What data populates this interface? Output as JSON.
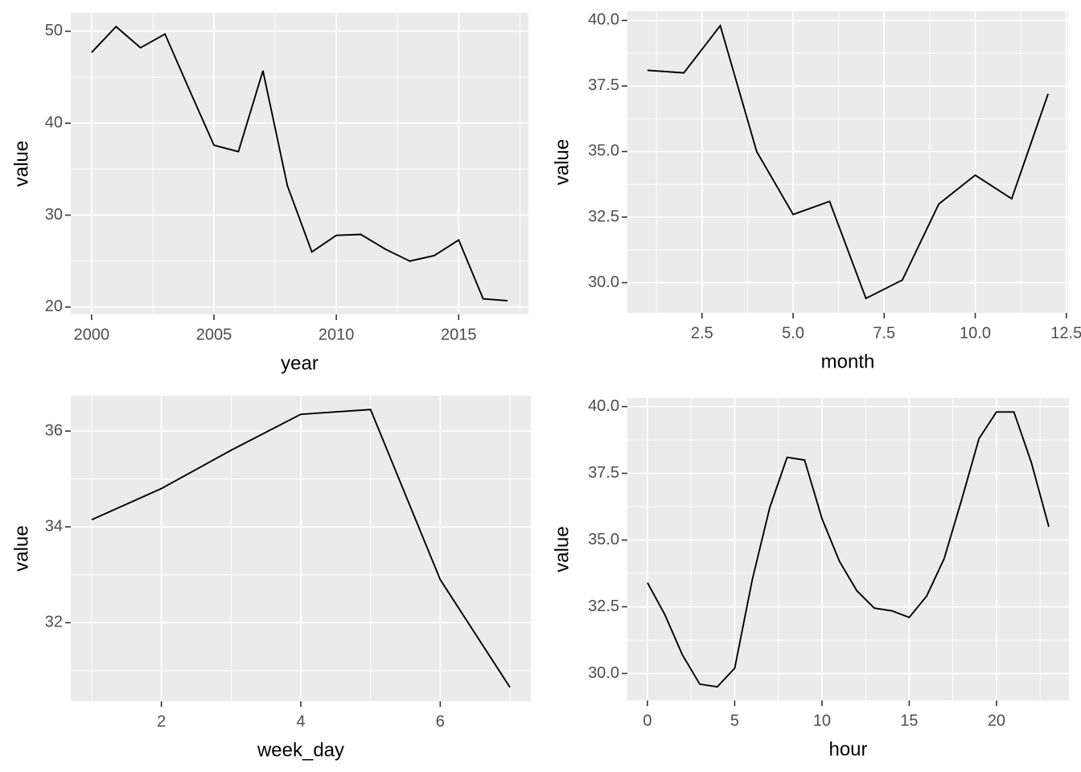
{
  "theme": {
    "panel_bg": "#EBEBEB",
    "grid_color": "#FFFFFF",
    "line_color": "#000000",
    "tick_label_color": "#4D4D4D",
    "tick_mark_color": "#333333",
    "axis_title_color": "#000000"
  },
  "chart_data": [
    {
      "type": "line",
      "id": "year",
      "xlabel": "year",
      "ylabel": "value",
      "x": [
        2000,
        2001,
        2002,
        2003,
        2004,
        2005,
        2006,
        2007,
        2008,
        2009,
        2010,
        2011,
        2012,
        2013,
        2014,
        2015,
        2016,
        2017
      ],
      "values": [
        47.7,
        50.5,
        48.2,
        49.7,
        43.6,
        37.6,
        36.9,
        45.7,
        33.2,
        26.0,
        27.8,
        27.9,
        26.3,
        25.0,
        25.6,
        27.3,
        20.9,
        20.7
      ],
      "x_domain": [
        1999.15,
        2017.85
      ],
      "y_domain": [
        19.2,
        52.0
      ],
      "x_ticks": [
        2000,
        2005,
        2010,
        2015
      ],
      "x_tick_labels": [
        "2000",
        "2005",
        "2010",
        "2015"
      ],
      "y_ticks": [
        20,
        30,
        40,
        50
      ],
      "y_tick_labels": [
        "20",
        "30",
        "40",
        "50"
      ],
      "x_minor": [
        2002.5,
        2007.5,
        2012.5,
        2017.5
      ],
      "y_minor": [
        25,
        35,
        45
      ],
      "grid": true,
      "legend": "none"
    },
    {
      "type": "line",
      "id": "month",
      "xlabel": "month",
      "ylabel": "value",
      "x": [
        1,
        2,
        3,
        4,
        5,
        6,
        7,
        8,
        9,
        10,
        11,
        12
      ],
      "values": [
        38.1,
        38.0,
        39.8,
        35.0,
        32.6,
        33.1,
        29.4,
        30.1,
        33.0,
        34.1,
        33.2,
        37.2
      ],
      "x_domain": [
        0.45,
        12.55
      ],
      "y_domain": [
        28.85,
        40.35
      ],
      "x_ticks": [
        2.5,
        5,
        7.5,
        10,
        12.5
      ],
      "x_tick_labels": [
        "2.5",
        "5.0",
        "7.5",
        "10.0",
        "12.5"
      ],
      "y_ticks": [
        30,
        32.5,
        35,
        37.5,
        40
      ],
      "y_tick_labels": [
        "30.0",
        "32.5",
        "35.0",
        "37.5",
        "40.0"
      ],
      "x_minor": [
        1.25,
        3.75,
        6.25,
        8.75,
        11.25
      ],
      "y_minor": [
        31.25,
        33.75,
        36.25,
        38.75
      ],
      "grid": true,
      "legend": "none"
    },
    {
      "type": "line",
      "id": "week_day",
      "xlabel": "week_day",
      "ylabel": "value",
      "x": [
        1,
        2,
        3,
        4,
        5,
        6,
        7
      ],
      "values": [
        34.15,
        34.8,
        35.6,
        36.35,
        36.45,
        32.9,
        30.65
      ],
      "x_domain": [
        0.7,
        7.3
      ],
      "y_domain": [
        30.36,
        36.74
      ],
      "x_ticks": [
        2,
        4,
        6
      ],
      "x_tick_labels": [
        "2",
        "4",
        "6"
      ],
      "y_ticks": [
        32,
        34,
        36
      ],
      "y_tick_labels": [
        "32",
        "34",
        "36"
      ],
      "x_minor": [
        1,
        3,
        5,
        7
      ],
      "y_minor": [
        31,
        33,
        35
      ],
      "grid": true,
      "legend": "none"
    },
    {
      "type": "line",
      "id": "hour",
      "xlabel": "hour",
      "ylabel": "value",
      "x": [
        0,
        1,
        2,
        3,
        4,
        5,
        6,
        7,
        8,
        9,
        10,
        11,
        12,
        13,
        14,
        15,
        16,
        17,
        18,
        19,
        20,
        21,
        22,
        23
      ],
      "values": [
        33.4,
        32.2,
        30.7,
        29.6,
        29.5,
        30.2,
        33.5,
        36.2,
        38.1,
        38.0,
        35.8,
        34.2,
        33.1,
        32.45,
        32.35,
        32.1,
        32.9,
        34.3,
        36.5,
        38.8,
        39.8,
        39.8,
        37.9,
        35.5
      ],
      "x_domain": [
        -1.15,
        24.15
      ],
      "y_domain": [
        28.99,
        40.32
      ],
      "x_ticks": [
        0,
        5,
        10,
        15,
        20
      ],
      "x_tick_labels": [
        "0",
        "5",
        "10",
        "15",
        "20"
      ],
      "y_ticks": [
        30,
        32.5,
        35,
        37.5,
        40
      ],
      "y_tick_labels": [
        "30.0",
        "32.5",
        "35.0",
        "37.5",
        "40.0"
      ],
      "x_minor": [
        2.5,
        7.5,
        12.5,
        17.5,
        22.5
      ],
      "y_minor": [
        31.25,
        33.75,
        36.25,
        38.75
      ],
      "grid": true,
      "legend": "none"
    }
  ]
}
